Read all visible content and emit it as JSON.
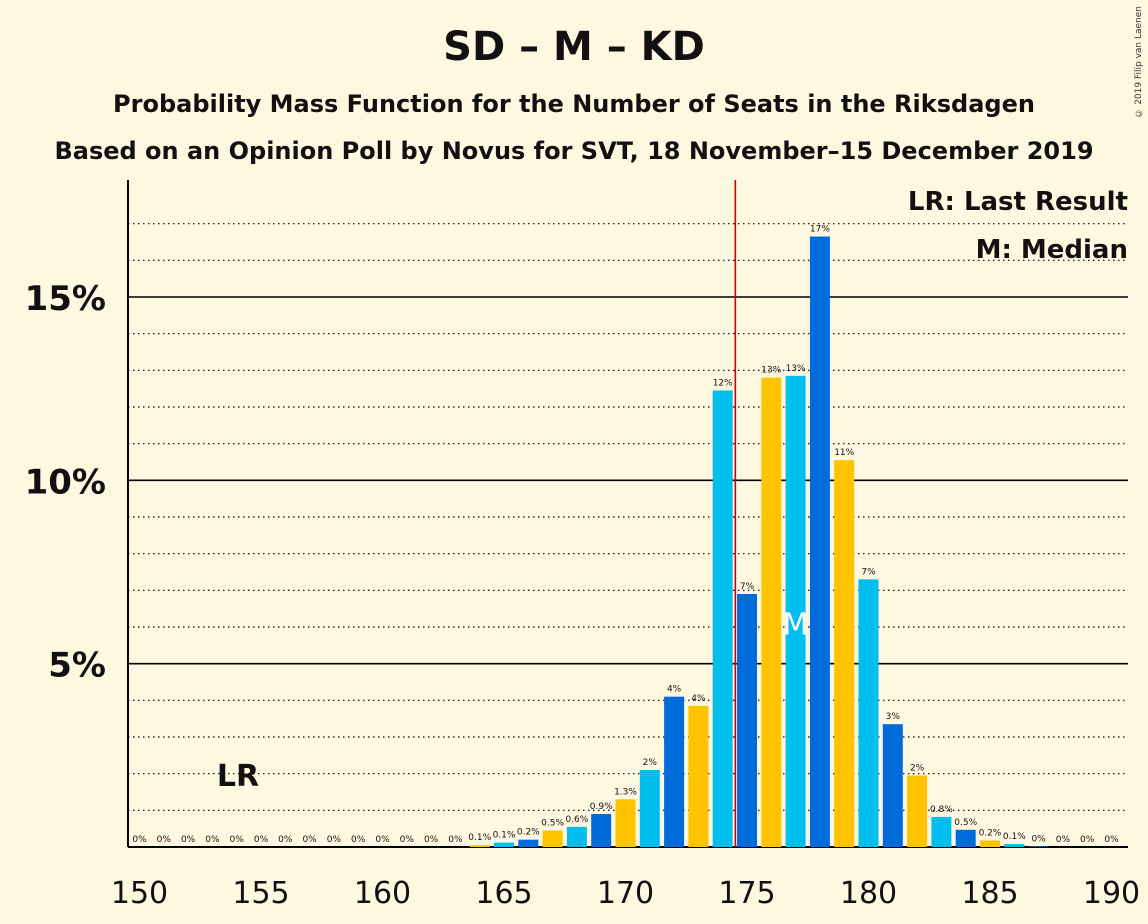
{
  "title": "SD – M – KD",
  "subtitle": "Probability Mass Function for the Number of Seats in the Riksdagen",
  "subtitle2": "Based on an Opinion Poll by Novus for SVT, 18 November–15 December 2019",
  "copyright": "© 2019 Filip van Laenen",
  "legend": {
    "lr": "LR: Last Result",
    "median": "M: Median"
  },
  "colors": {
    "background": "#FFF8E1",
    "series": [
      "#00BFEF",
      "#006BDB",
      "#FFC300"
    ],
    "majority_line": "#CC0000"
  },
  "chart_data": {
    "type": "bar",
    "xlim": [
      150,
      190
    ],
    "ylim": [
      0,
      18
    ],
    "x_ticks": [
      "150",
      "155",
      "160",
      "165",
      "170",
      "175",
      "180",
      "185",
      "190"
    ],
    "y_ticks": [
      "5%",
      "10%",
      "15%"
    ],
    "majority_line_x": 174.5,
    "last_result": {
      "seats": 154,
      "label": "LR"
    },
    "median": {
      "seats": 177,
      "label": "M"
    },
    "seats": [
      150,
      151,
      152,
      153,
      154,
      155,
      156,
      157,
      158,
      159,
      160,
      161,
      162,
      163,
      164,
      165,
      166,
      167,
      168,
      169,
      170,
      171,
      172,
      173,
      174,
      175,
      176,
      177,
      178,
      179,
      180,
      181,
      182,
      183,
      184,
      185,
      186,
      187,
      188,
      189,
      190
    ],
    "values": [
      0,
      0,
      0,
      0,
      0,
      0,
      0,
      0,
      0,
      0,
      0,
      0,
      0,
      0,
      0.05,
      0.12,
      0.2,
      0.45,
      0.55,
      0.9,
      1.3,
      2.1,
      4.1,
      3.85,
      12.45,
      6.9,
      12.8,
      12.85,
      16.65,
      10.55,
      7.3,
      3.35,
      1.95,
      0.82,
      0.47,
      0.18,
      0.08,
      0.02,
      0,
      0,
      0
    ],
    "labels": [
      "0%",
      "0%",
      "0%",
      "0%",
      "0%",
      "0%",
      "0%",
      "0%",
      "0%",
      "0%",
      "0%",
      "0%",
      "0%",
      "0%",
      "0.1%",
      "0.1%",
      "0.2%",
      "0.5%",
      "0.6%",
      "0.9%",
      "1.3%",
      "2%",
      "4%",
      "4%",
      "12%",
      "7%",
      "13%",
      "13%",
      "17%",
      "11%",
      "7%",
      "3%",
      "2%",
      "0.8%",
      "0.5%",
      "0.2%",
      "0.1%",
      "0%",
      "0%",
      "0%",
      "0%"
    ]
  }
}
